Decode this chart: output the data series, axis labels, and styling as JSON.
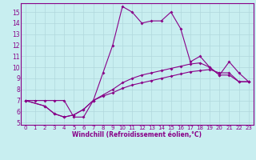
{
  "xlabel": "Windchill (Refroidissement éolien,°C)",
  "bg_color": "#c8eef0",
  "grid_color": "#b0d8dc",
  "line_color": "#880088",
  "xlim": [
    -0.5,
    23.5
  ],
  "ylim": [
    4.8,
    15.8
  ],
  "yticks": [
    5,
    6,
    7,
    8,
    9,
    10,
    11,
    12,
    13,
    14,
    15
  ],
  "xticks": [
    0,
    1,
    2,
    3,
    4,
    5,
    6,
    7,
    8,
    9,
    10,
    11,
    12,
    13,
    14,
    15,
    16,
    17,
    18,
    19,
    20,
    21,
    22,
    23
  ],
  "series1_x": [
    0,
    1,
    2,
    3,
    4,
    5,
    6,
    7,
    8,
    9,
    10,
    11,
    12,
    13,
    14,
    15,
    16,
    17,
    18,
    19,
    20,
    21,
    22,
    23
  ],
  "series1_y": [
    7.0,
    7.0,
    7.0,
    7.0,
    7.0,
    5.5,
    5.5,
    7.0,
    9.5,
    12.0,
    15.5,
    15.0,
    14.0,
    14.2,
    14.2,
    15.0,
    13.5,
    10.5,
    11.0,
    10.0,
    9.3,
    10.5,
    9.5,
    8.7
  ],
  "series2_x": [
    0,
    2,
    3,
    4,
    5,
    6,
    7,
    8,
    9,
    10,
    11,
    12,
    13,
    14,
    15,
    16,
    17,
    18,
    19,
    20,
    21,
    22,
    23
  ],
  "series2_y": [
    7.0,
    6.5,
    5.8,
    5.5,
    5.7,
    6.2,
    7.0,
    7.4,
    7.7,
    8.1,
    8.4,
    8.6,
    8.8,
    9.0,
    9.2,
    9.4,
    9.6,
    9.7,
    9.8,
    9.5,
    9.5,
    8.7,
    8.7
  ],
  "series3_x": [
    0,
    2,
    3,
    4,
    5,
    6,
    7,
    8,
    9,
    10,
    11,
    12,
    13,
    14,
    15,
    16,
    17,
    18,
    19,
    20,
    21,
    22,
    23
  ],
  "series3_y": [
    7.0,
    6.5,
    5.8,
    5.5,
    5.7,
    6.2,
    7.0,
    7.5,
    8.0,
    8.6,
    9.0,
    9.3,
    9.5,
    9.7,
    9.9,
    10.1,
    10.3,
    10.4,
    10.0,
    9.3,
    9.3,
    8.7,
    8.7
  ]
}
